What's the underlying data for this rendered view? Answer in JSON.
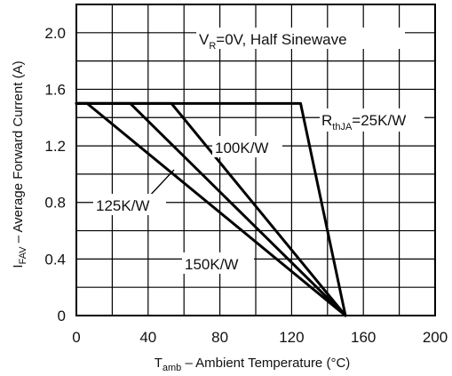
{
  "chart_data": {
    "type": "line",
    "xlabel": {
      "main": "T",
      "sub": "amb",
      "rest": " – Ambient Temperature (°C)"
    },
    "ylabel": {
      "main": "I",
      "sub": "FAV",
      "rest": " – Average Forward Current (A)"
    },
    "xlim": [
      0,
      200
    ],
    "ylim": [
      0,
      2.2
    ],
    "xticks": [
      0,
      40,
      80,
      120,
      160,
      200
    ],
    "yticks": [
      0,
      0.4,
      0.8,
      1.2,
      1.6,
      2.0
    ],
    "xtick_labels": [
      "0",
      "40",
      "80",
      "120",
      "160",
      "200"
    ],
    "ytick_labels": [
      "0",
      "0.4",
      "0.8",
      "1.2",
      "1.6",
      "2.0"
    ],
    "grid": true,
    "condition": {
      "pre": "V",
      "sub": "R",
      "post": "=0V, Half Sinewave"
    },
    "series": [
      {
        "name": "RthJA=25K/W",
        "x": [
          0,
          125,
          150
        ],
        "y": [
          1.5,
          1.5,
          0
        ]
      },
      {
        "name": "100K/W",
        "x": [
          0,
          53,
          150
        ],
        "y": [
          1.5,
          1.5,
          0
        ]
      },
      {
        "name": "125K/W",
        "x": [
          0,
          30,
          150
        ],
        "y": [
          1.5,
          1.5,
          0
        ]
      },
      {
        "name": "150K/W",
        "x": [
          0,
          6,
          150
        ],
        "y": [
          1.5,
          1.5,
          0
        ]
      }
    ],
    "series_labels": {
      "r25": {
        "pre": "R",
        "sub": "thJA",
        "post": "=25K/W"
      },
      "r100": "100K/W",
      "r125": "125K/W",
      "r150": "150K/W"
    }
  }
}
